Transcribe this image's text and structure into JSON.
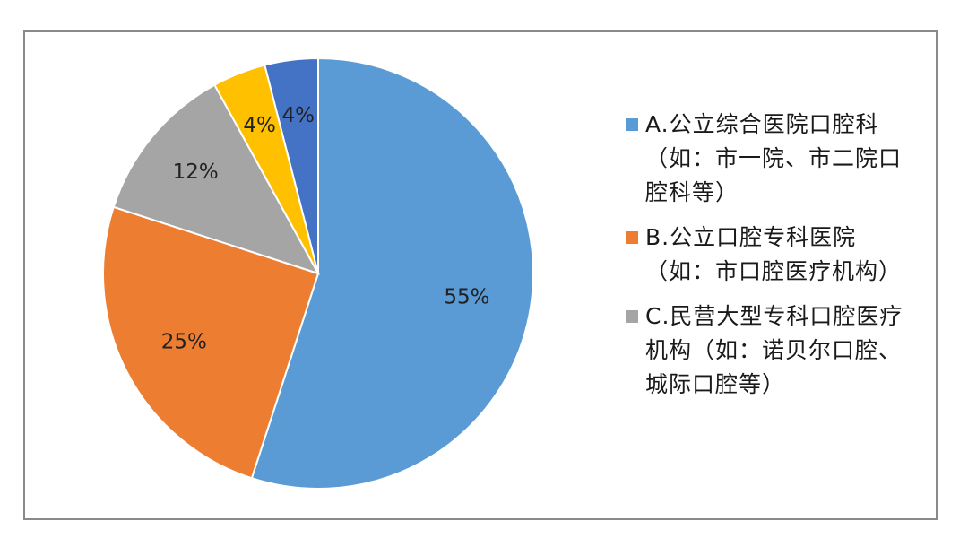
{
  "chart_data": {
    "type": "pie",
    "title": "",
    "slices": [
      {
        "label": "A.公立综合医院口腔科（如：市一院、市二院口腔科等）",
        "value": 55,
        "display": "55%",
        "color": "#5b9bd5"
      },
      {
        "label": "B.公立口腔专科医院（如：市口腔医疗机构）",
        "value": 25,
        "display": "25%",
        "color": "#ed7d31"
      },
      {
        "label": "C.民营大型专科口腔医疗机构（如：诺贝尔口腔、城际口腔等）",
        "value": 12,
        "display": "12%",
        "color": "#a5a5a5"
      },
      {
        "label": "",
        "value": 4,
        "display": "4%",
        "color": "#ffc000"
      },
      {
        "label": "",
        "value": 4,
        "display": "4%",
        "color": "#4472c4"
      }
    ],
    "legend": {
      "placement": "right",
      "entries": [
        {
          "label": "A.公立综合医院口腔科（如：市一院、市二院口腔科等）",
          "color": "#5b9bd5"
        },
        {
          "label": "B.公立口腔专科医院（如：市口腔医疗机构）",
          "color": "#ed7d31"
        },
        {
          "label": "C.民营大型专科口腔医疗机构（如：诺贝尔口腔、城际口腔等）",
          "color": "#a5a5a5"
        }
      ]
    }
  }
}
